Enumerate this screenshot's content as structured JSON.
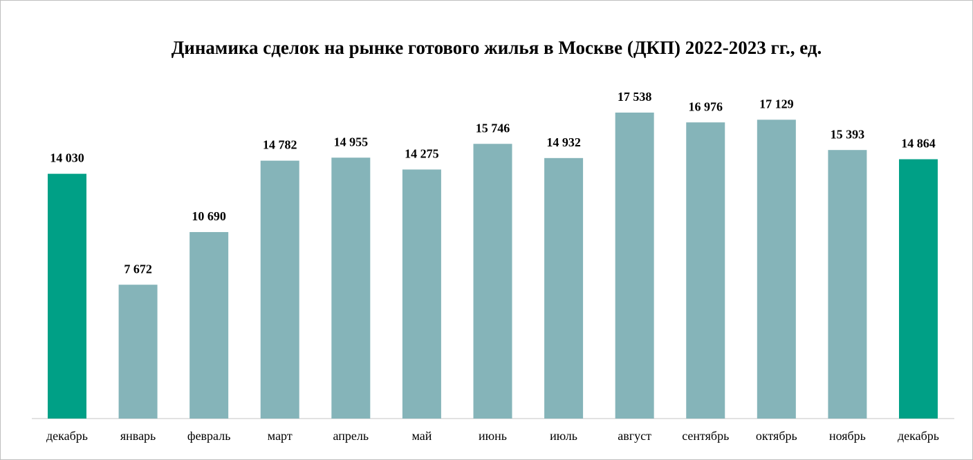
{
  "chart_data": {
    "type": "bar",
    "title": "Динамика сделок на рынке готового жилья в Москве (ДКП) 2022-2023 гг., ед.",
    "categories": [
      "декабрь",
      "январь",
      "февраль",
      "март",
      "апрель",
      "май",
      "июнь",
      "июль",
      "август",
      "сентябрь",
      "октябрь",
      "ноябрь",
      "декабрь"
    ],
    "values": [
      14030,
      7672,
      10690,
      14782,
      14955,
      14275,
      15746,
      14932,
      17538,
      16976,
      17129,
      15393,
      14864
    ],
    "value_labels": [
      "14 030",
      "7 672",
      "10 690",
      "14 782",
      "14 955",
      "14 275",
      "15 746",
      "14 932",
      "17 538",
      "16 976",
      "17 129",
      "15 393",
      "14 864"
    ],
    "colors": [
      "#00a086",
      "#85b4b9",
      "#85b4b9",
      "#85b4b9",
      "#85b4b9",
      "#85b4b9",
      "#85b4b9",
      "#85b4b9",
      "#85b4b9",
      "#85b4b9",
      "#85b4b9",
      "#85b4b9",
      "#00a086"
    ]
  }
}
